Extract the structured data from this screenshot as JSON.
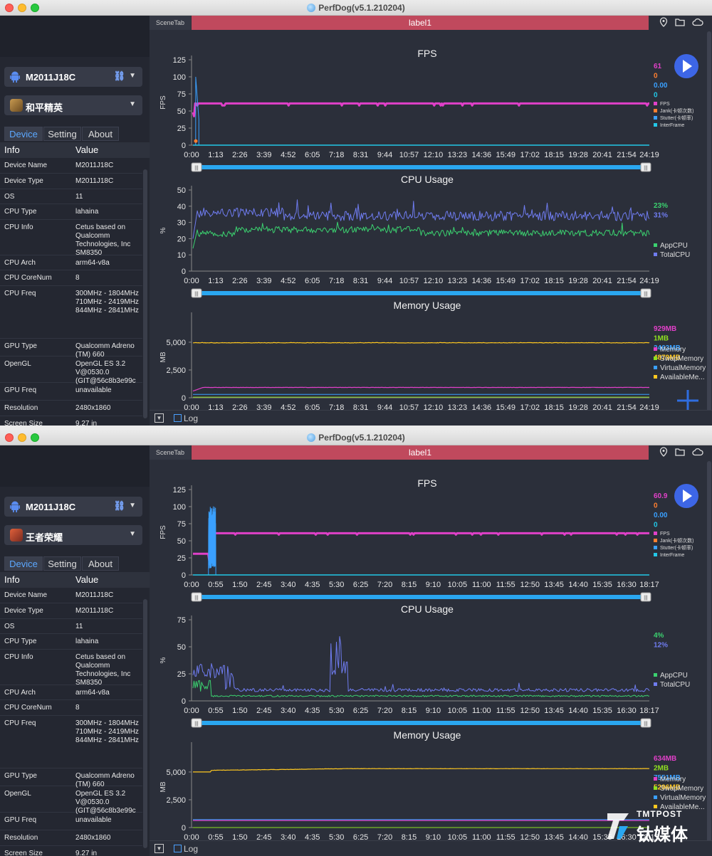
{
  "windows": [
    {
      "title": "PerfDog(v5.1.210204)",
      "device": "M2011J18C",
      "app": "和平精英",
      "tabs": [
        "Device",
        "Setting",
        "About"
      ],
      "active_tab": "Device",
      "table_headers": [
        "Info",
        "Value"
      ],
      "info_rows": [
        {
          "k": "Device Name",
          "v": "M2011J18C"
        },
        {
          "k": "Device Type",
          "v": "M2011J18C"
        },
        {
          "k": "OS",
          "v": "11"
        },
        {
          "k": "CPU Type",
          "v": "lahaina"
        },
        {
          "k": "CPU Info",
          "v": "Cetus based on Qualcomm Technologies, Inc SM8350"
        },
        {
          "k": "CPU Arch",
          "v": "arm64-v8a"
        },
        {
          "k": "CPU CoreNum",
          "v": "8"
        },
        {
          "k": "CPU Freq",
          "v": "300MHz - 1804MHz 710MHz - 2419MHz 844MHz - 2841MHz"
        },
        {
          "k": "GPU Type",
          "v": "Qualcomm Adreno (TM) 660"
        },
        {
          "k": "OpenGL",
          "v": "OpenGL ES 3.2 V@0530.0 (GIT@56c8b3e99c"
        },
        {
          "k": "GPU Freq",
          "v": "unavailable"
        },
        {
          "k": "Resolution",
          "v": "2480x1860"
        },
        {
          "k": "Screen Size",
          "v": "9.27 in"
        }
      ],
      "scene_tab": "SceneTab",
      "label": "label1",
      "log_label": "Log",
      "charts": [
        {
          "type": "line",
          "title": "FPS",
          "ylabel": "FPS",
          "yticks": [
            0,
            25,
            50,
            75,
            100,
            125
          ],
          "ylim": [
            0,
            125
          ],
          "xticks": [
            "0:00",
            "1:13",
            "2:26",
            "3:39",
            "4:52",
            "6:05",
            "7:18",
            "8:31",
            "9:44",
            "10:57",
            "12:10",
            "13:23",
            "14:36",
            "15:49",
            "17:02",
            "18:15",
            "19:28",
            "20:41",
            "21:54",
            "24:19"
          ],
          "current_values": [
            {
              "text": "61",
              "color": "#e040c8"
            },
            {
              "text": "0",
              "color": "#ff8030"
            },
            {
              "text": "0.00",
              "color": "#3aa0ff"
            },
            {
              "text": "0",
              "color": "#22c8e8"
            }
          ],
          "legend": [
            {
              "text": "FPS",
              "color": "#e040c8"
            },
            {
              "text": "Jank(卡顿次数)",
              "color": "#ff8030"
            },
            {
              "text": "Stutter(卡顿率)",
              "color": "#3aa0ff"
            },
            {
              "text": "InterFrame",
              "color": "#22c8e8"
            }
          ]
        },
        {
          "type": "line",
          "title": "CPU Usage",
          "ylabel": "%",
          "yticks": [
            0,
            10,
            20,
            30,
            40,
            50
          ],
          "ylim": [
            0,
            50
          ],
          "xticks": [
            "0:00",
            "1:13",
            "2:26",
            "3:39",
            "4:52",
            "6:05",
            "7:18",
            "8:31",
            "9:44",
            "10:57",
            "12:10",
            "13:23",
            "14:36",
            "15:49",
            "17:02",
            "18:15",
            "19:28",
            "20:41",
            "21:54",
            "24:19"
          ],
          "current_values": [
            {
              "text": "23%",
              "color": "#3bd16f"
            },
            {
              "text": "31%",
              "color": "#6f7cf0"
            }
          ],
          "legend": [
            {
              "text": "AppCPU",
              "color": "#3bd16f"
            },
            {
              "text": "TotalCPU",
              "color": "#6f7cf0"
            }
          ]
        },
        {
          "type": "line",
          "title": "Memory Usage",
          "ylabel": "MB",
          "yticks": [
            0,
            2500,
            5000
          ],
          "ytick_labels": [
            "0",
            "2,500",
            "5,000"
          ],
          "ylim": [
            0,
            7300
          ],
          "xticks": [
            "0:00",
            "1:13",
            "2:26",
            "3:39",
            "4:52",
            "6:05",
            "7:18",
            "8:31",
            "9:44",
            "10:57",
            "12:10",
            "13:23",
            "14:36",
            "15:49",
            "17:02",
            "18:15",
            "19:28",
            "20:41",
            "21:54",
            "24:19"
          ],
          "current_values": [
            {
              "text": "929MB",
              "color": "#e040c8"
            },
            {
              "text": "1MB",
              "color": "#8fe020"
            },
            {
              "text": "2463MB",
              "color": "#3aa0ff"
            },
            {
              "text": "4879MB",
              "color": "#ffc820"
            }
          ],
          "legend": [
            {
              "text": "Memory",
              "color": "#e040c8"
            },
            {
              "text": "SwapMemory",
              "color": "#8fe020"
            },
            {
              "text": "VirtualMemory",
              "color": "#3aa0ff"
            },
            {
              "text": "AvailableMe...",
              "color": "#ffc820"
            }
          ]
        }
      ]
    },
    {
      "title": "PerfDog(v5.1.210204)",
      "device": "M2011J18C",
      "app": "王者荣耀",
      "tabs": [
        "Device",
        "Setting",
        "About"
      ],
      "active_tab": "Device",
      "table_headers": [
        "Info",
        "Value"
      ],
      "info_rows": [
        {
          "k": "Device Name",
          "v": "M2011J18C"
        },
        {
          "k": "Device Type",
          "v": "M2011J18C"
        },
        {
          "k": "OS",
          "v": "11"
        },
        {
          "k": "CPU Type",
          "v": "lahaina"
        },
        {
          "k": "CPU Info",
          "v": "Cetus based on Qualcomm Technologies, Inc SM8350"
        },
        {
          "k": "CPU Arch",
          "v": "arm64-v8a"
        },
        {
          "k": "CPU CoreNum",
          "v": "8"
        },
        {
          "k": "CPU Freq",
          "v": "300MHz - 1804MHz 710MHz - 2419MHz 844MHz - 2841MHz"
        },
        {
          "k": "GPU Type",
          "v": "Qualcomm Adreno (TM) 660"
        },
        {
          "k": "OpenGL",
          "v": "OpenGL ES 3.2 V@0530.0 (GIT@56c8b3e99c"
        },
        {
          "k": "GPU Freq",
          "v": "unavailable"
        },
        {
          "k": "Resolution",
          "v": "2480x1860"
        },
        {
          "k": "Screen Size",
          "v": "9.27 in"
        }
      ],
      "scene_tab": "SceneTab",
      "label": "label1",
      "log_label": "Log",
      "charts": [
        {
          "type": "line",
          "title": "FPS",
          "ylabel": "FPS",
          "yticks": [
            0,
            25,
            50,
            75,
            100,
            125
          ],
          "ylim": [
            0,
            125
          ],
          "xticks": [
            "0:00",
            "0:55",
            "1:50",
            "2:45",
            "3:40",
            "4:35",
            "5:30",
            "6:25",
            "7:20",
            "8:15",
            "9:10",
            "10:05",
            "11:00",
            "11:55",
            "12:50",
            "13:45",
            "14:40",
            "15:35",
            "16:30",
            "18:17"
          ],
          "current_values": [
            {
              "text": "60.9",
              "color": "#e040c8"
            },
            {
              "text": "0",
              "color": "#ff8030"
            },
            {
              "text": "0.00",
              "color": "#3aa0ff"
            },
            {
              "text": "0",
              "color": "#22c8e8"
            }
          ],
          "legend": [
            {
              "text": "FPS",
              "color": "#e040c8"
            },
            {
              "text": "Jank(卡顿次数)",
              "color": "#ff8030"
            },
            {
              "text": "Stutter(卡顿率)",
              "color": "#3aa0ff"
            },
            {
              "text": "InterFrame",
              "color": "#22c8e8"
            }
          ]
        },
        {
          "type": "line",
          "title": "CPU Usage",
          "ylabel": "%",
          "yticks": [
            0,
            25,
            50,
            75
          ],
          "ylim": [
            0,
            75
          ],
          "xticks": [
            "0:00",
            "0:55",
            "1:50",
            "2:45",
            "3:40",
            "4:35",
            "5:30",
            "6:25",
            "7:20",
            "8:15",
            "9:10",
            "10:05",
            "11:00",
            "11:55",
            "12:50",
            "13:45",
            "14:40",
            "15:35",
            "16:30",
            "18:17"
          ],
          "current_values": [
            {
              "text": "4%",
              "color": "#3bd16f"
            },
            {
              "text": "12%",
              "color": "#6f7cf0"
            }
          ],
          "legend": [
            {
              "text": "AppCPU",
              "color": "#3bd16f"
            },
            {
              "text": "TotalCPU",
              "color": "#6f7cf0"
            }
          ]
        },
        {
          "type": "line",
          "title": "Memory Usage",
          "ylabel": "MB",
          "yticks": [
            0,
            2500,
            5000
          ],
          "ytick_labels": [
            "0",
            "2,500",
            "5,000"
          ],
          "ylim": [
            0,
            7300
          ],
          "xticks": [
            "0:00",
            "0:55",
            "1:50",
            "2:45",
            "3:40",
            "4:35",
            "5:30",
            "6:25",
            "7:20",
            "8:15",
            "9:10",
            "10:05",
            "11:00",
            "11:55",
            "12:50",
            "13:45",
            "14:40",
            "15:35",
            "16:30",
            "18:17"
          ],
          "current_values": [
            {
              "text": "634MB",
              "color": "#e040c8"
            },
            {
              "text": "2MB",
              "color": "#8fe020"
            },
            {
              "text": "7551MB",
              "color": "#3aa0ff"
            },
            {
              "text": "5296MB",
              "color": "#ffc820"
            }
          ],
          "legend": [
            {
              "text": "Memory",
              "color": "#e040c8"
            },
            {
              "text": "SwapMemory",
              "color": "#8fe020"
            },
            {
              "text": "VirtualMemory",
              "color": "#3aa0ff"
            },
            {
              "text": "AvailableMe...",
              "color": "#ffc820"
            }
          ]
        }
      ]
    }
  ],
  "watermark": {
    "brand": "TMTPOST",
    "text": "钛媒体"
  }
}
